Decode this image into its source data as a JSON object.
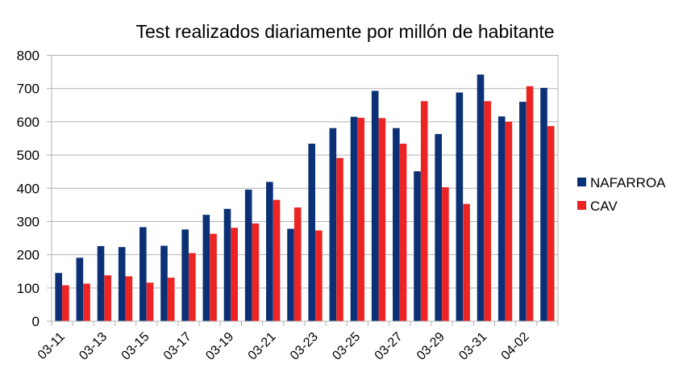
{
  "chart_data": {
    "type": "bar",
    "title": "Test realizados diariamente por millón de habitante",
    "xlabel": "",
    "ylabel": "",
    "ylim": [
      0,
      800
    ],
    "yticks": [
      0,
      100,
      200,
      300,
      400,
      500,
      600,
      700,
      800
    ],
    "grid": true,
    "legend_position": "right",
    "categories": [
      "03-11",
      "03-12",
      "03-13",
      "03-14",
      "03-15",
      "03-16",
      "03-17",
      "03-18",
      "03-19",
      "03-20",
      "03-21",
      "03-22",
      "03-23",
      "03-24",
      "03-25",
      "03-26",
      "03-27",
      "03-28",
      "03-29",
      "03-30",
      "03-31",
      "04-01",
      "04-02",
      "04-03"
    ],
    "tick_labels": [
      "03-11",
      "03-13",
      "03-15",
      "03-17",
      "03-19",
      "03-21",
      "03-23",
      "03-25",
      "03-27",
      "03-29",
      "03-31",
      "04-02"
    ],
    "series": [
      {
        "name": "NAFARROA",
        "color": "#0b3075",
        "values": [
          145,
          191,
          226,
          223,
          283,
          227,
          276,
          320,
          338,
          396,
          419,
          278,
          534,
          581,
          615,
          693,
          581,
          451,
          563,
          688,
          742,
          616,
          660,
          702
        ]
      },
      {
        "name": "CAV",
        "color": "#ec2424",
        "values": [
          108,
          113,
          138,
          135,
          116,
          131,
          205,
          263,
          281,
          294,
          365,
          342,
          273,
          491,
          612,
          611,
          534,
          662,
          403,
          353,
          662,
          600,
          707,
          587
        ]
      }
    ]
  }
}
